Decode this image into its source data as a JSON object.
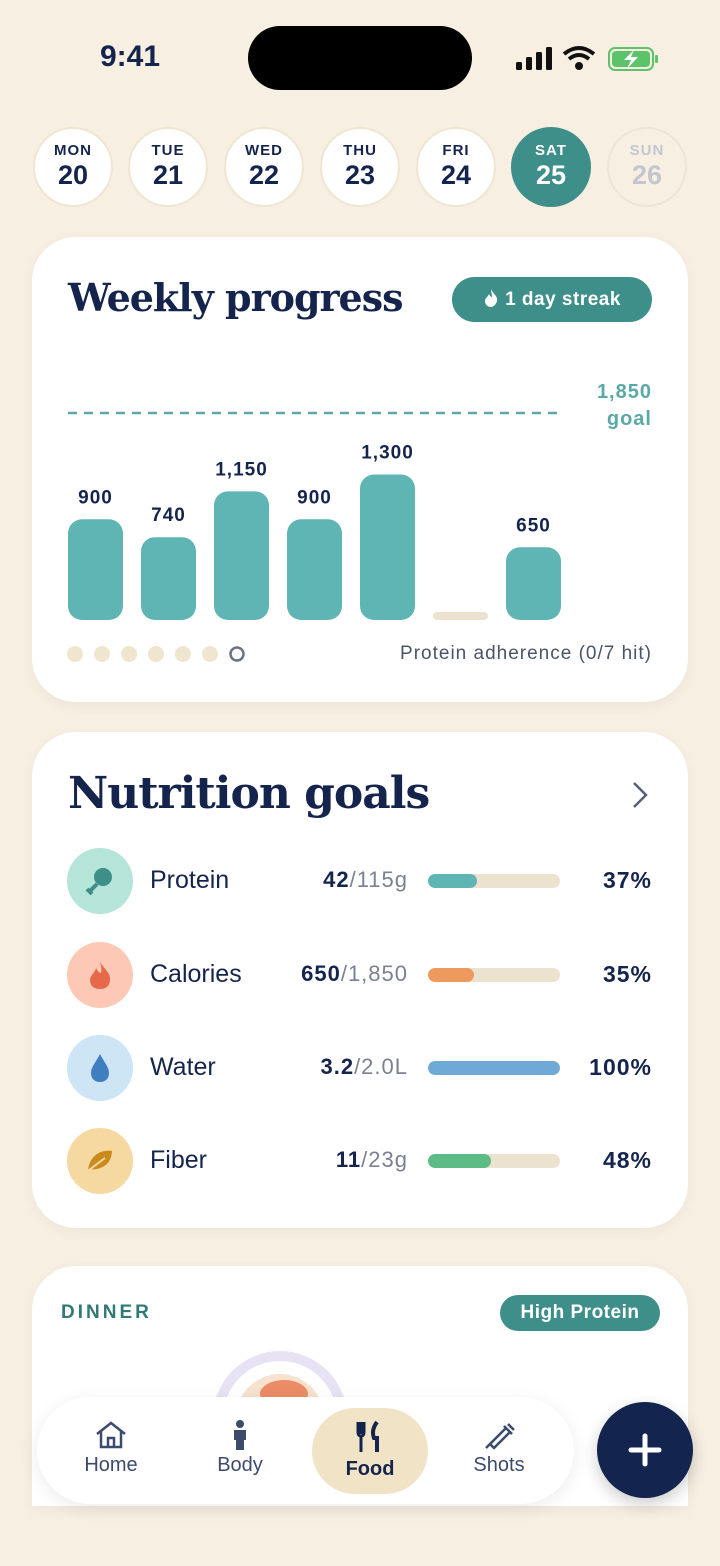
{
  "status": {
    "time": "9:41"
  },
  "days": [
    {
      "name": "MON",
      "date": "20"
    },
    {
      "name": "TUE",
      "date": "21"
    },
    {
      "name": "WED",
      "date": "22"
    },
    {
      "name": "THU",
      "date": "23"
    },
    {
      "name": "FRI",
      "date": "24"
    },
    {
      "name": "SAT",
      "date": "25"
    },
    {
      "name": "SUN",
      "date": "26"
    }
  ],
  "weekly": {
    "title": "Weekly progress",
    "streak": "1 day streak",
    "goal": 1850,
    "goal_value_label": "1,850",
    "goal_label": "goal",
    "values": [
      900,
      740,
      1150,
      900,
      1300,
      null,
      650
    ],
    "value_labels": [
      "900",
      "740",
      "1,150",
      "900",
      "1,300",
      null,
      "650"
    ],
    "color": "#5fb5b3",
    "footer": "Protein adherence (0/7 hit)"
  },
  "nutrition": {
    "title": "Nutrition goals",
    "rows": [
      {
        "name": "Protein",
        "amount": "42",
        "target": "/115g",
        "percent": 37,
        "percent_label": "37%",
        "color": "#5fb5b3"
      },
      {
        "name": "Calories",
        "amount": "650",
        "target": "/1,850",
        "percent": 35,
        "percent_label": "35%",
        "color": "#ee9a5e"
      },
      {
        "name": "Water",
        "amount": "3.2",
        "target": "/2.0L",
        "percent": 100,
        "percent_label": "100%",
        "color": "#6ea9d8"
      },
      {
        "name": "Fiber",
        "amount": "11",
        "target": "/23g",
        "percent": 48,
        "percent_label": "48%",
        "color": "#5dbb86"
      }
    ]
  },
  "dinner": {
    "label": "DINNER",
    "tag": "High Protein"
  },
  "nav": [
    "Home",
    "Body",
    "Food",
    "Shots"
  ]
}
